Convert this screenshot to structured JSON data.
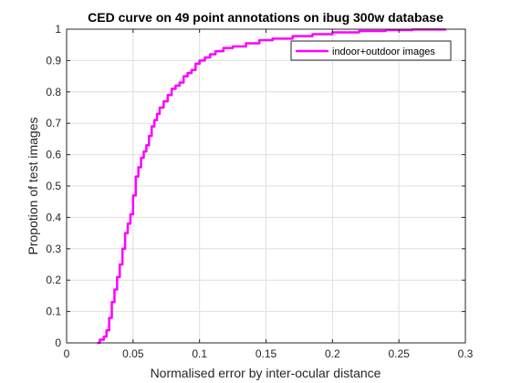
{
  "chart_data": {
    "type": "line",
    "title": "CED curve on 49 point annotations on ibug 300w database",
    "xlabel": "Normalised error by inter-ocular distance",
    "ylabel": "Propotion of test images",
    "xlim": [
      0,
      0.3
    ],
    "ylim": [
      0,
      1
    ],
    "xticks": [
      0,
      0.05,
      0.1,
      0.15,
      0.2,
      0.25,
      0.3
    ],
    "yticks": [
      0,
      0.1,
      0.2,
      0.3,
      0.4,
      0.5,
      0.6,
      0.7,
      0.8,
      0.9,
      1
    ],
    "xtick_labels": [
      "0",
      "0.05",
      "0.1",
      "0.15",
      "0.2",
      "0.25",
      "0.3"
    ],
    "ytick_labels": [
      "0",
      "0.1",
      "0.2",
      "0.3",
      "0.4",
      "0.5",
      "0.6",
      "0.7",
      "0.8",
      "0.9",
      "1"
    ],
    "grid": true,
    "legend_position": "top-right",
    "series": [
      {
        "name": "indoor+outdoor images",
        "color": "#ff00ff",
        "x": [
          0.023,
          0.025,
          0.028,
          0.03,
          0.032,
          0.034,
          0.036,
          0.038,
          0.04,
          0.042,
          0.044,
          0.046,
          0.048,
          0.05,
          0.052,
          0.054,
          0.056,
          0.058,
          0.06,
          0.062,
          0.064,
          0.066,
          0.068,
          0.07,
          0.073,
          0.076,
          0.079,
          0.082,
          0.085,
          0.088,
          0.091,
          0.094,
          0.097,
          0.1,
          0.104,
          0.108,
          0.112,
          0.118,
          0.125,
          0.135,
          0.145,
          0.155,
          0.17,
          0.185,
          0.2,
          0.22,
          0.24,
          0.26,
          0.285
        ],
        "y": [
          0.0,
          0.01,
          0.02,
          0.04,
          0.08,
          0.13,
          0.17,
          0.21,
          0.25,
          0.3,
          0.35,
          0.38,
          0.41,
          0.47,
          0.53,
          0.56,
          0.59,
          0.61,
          0.63,
          0.66,
          0.69,
          0.71,
          0.73,
          0.75,
          0.77,
          0.79,
          0.81,
          0.82,
          0.83,
          0.85,
          0.86,
          0.87,
          0.89,
          0.9,
          0.91,
          0.92,
          0.93,
          0.94,
          0.945,
          0.955,
          0.965,
          0.97,
          0.978,
          0.984,
          0.99,
          0.994,
          0.997,
          0.999,
          1.0
        ]
      }
    ]
  }
}
